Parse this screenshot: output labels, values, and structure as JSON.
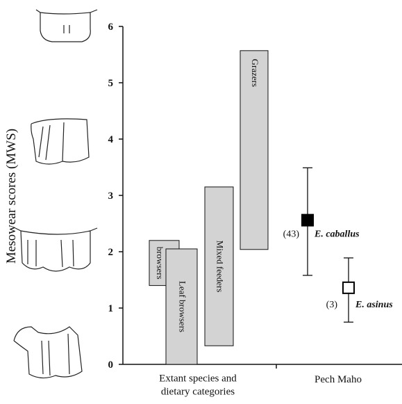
{
  "chart_data": {
    "type": "range_bar",
    "ylabel": "Mesowear scores (MWS)",
    "categories": [
      "Extant species and dietary categories",
      "Pech Maho"
    ],
    "ylim": [
      0,
      6
    ],
    "yticks": [
      0,
      1,
      2,
      3,
      4,
      5,
      6
    ],
    "ranges": [
      {
        "name": "Fruit browsers",
        "low": 1.4,
        "high": 2.2,
        "color": "#d3d3d3"
      },
      {
        "name": "Leaf browsers",
        "low": 0,
        "high": 2.05,
        "color": "#d3d3d3"
      },
      {
        "name": "Mixed feeders",
        "low": 0.33,
        "high": 3.15,
        "color": "#d3d3d3"
      },
      {
        "name": "Grazers",
        "low": 2.04,
        "high": 5.57,
        "color": "#d3d3d3"
      }
    ],
    "points": [
      {
        "name": "E. caballus",
        "n_label": "(43)",
        "value": 2.56,
        "low": 1.58,
        "high": 3.49,
        "color": "#000000",
        "filled": true
      },
      {
        "name": "E. asinus",
        "n_label": "(3)",
        "value": 1.36,
        "low": 0.75,
        "high": 1.89,
        "color": "#000000",
        "filled": false
      }
    ]
  }
}
